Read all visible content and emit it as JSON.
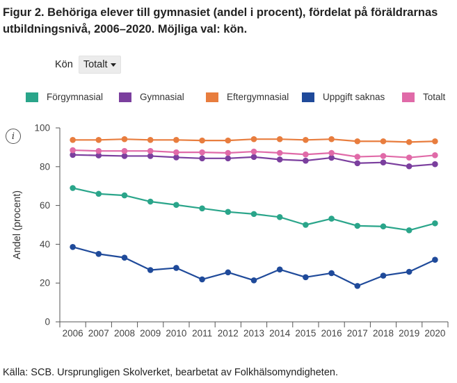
{
  "title": "Figur 2. Behöriga elever till gymnasiet (andel i procent), fördelat på föräldrarnas utbildningsnivå, 2006–2020. Möjliga val: kön.",
  "filter": {
    "label": "Kön",
    "selected": "Totalt"
  },
  "info_icon": "info-icon",
  "info_glyph": "i",
  "source": "Källa: SCB. Ursprungligen Skolverket, bearbetat av Folkhälsomyndigheten.",
  "chart_data": {
    "type": "line",
    "ylabel": "Andel (procent)",
    "xlabel": "",
    "ylim": [
      0,
      100
    ],
    "yticks": [
      0,
      20,
      40,
      60,
      80,
      100
    ],
    "grid": false,
    "legend_position": "top",
    "x": [
      "2006",
      "2007",
      "2008",
      "2009",
      "2010",
      "2011",
      "2012",
      "2013",
      "2014",
      "2015",
      "2016",
      "2017",
      "2018",
      "2019",
      "2020"
    ],
    "series": [
      {
        "name": "Förgymnasial",
        "color": "#2aa58a",
        "values": [
          69,
          66,
          65.2,
          62,
          60.3,
          58.5,
          56.7,
          55.6,
          54,
          50,
          53.2,
          49.5,
          49.2,
          47.2,
          50.8
        ]
      },
      {
        "name": "Gymnasial",
        "color": "#7b3f9e",
        "values": [
          86.1,
          85.8,
          85.5,
          85.5,
          84.8,
          84.3,
          84.3,
          85,
          83.7,
          83.1,
          84.6,
          81.8,
          82.2,
          80.2,
          81.3
        ]
      },
      {
        "name": "Eftergymnasial",
        "color": "#e87d3e",
        "values": [
          93.8,
          93.8,
          94.2,
          93.8,
          93.8,
          93.5,
          93.5,
          94.2,
          94.2,
          93.8,
          94.2,
          93.1,
          93.1,
          92.7,
          93.1
        ]
      },
      {
        "name": "Uppgift saknas",
        "color": "#1f4a9a",
        "values": [
          38.6,
          35,
          33.1,
          26.7,
          27.8,
          21.9,
          25.5,
          21.4,
          27,
          23,
          25.1,
          18.5,
          23.8,
          25.8,
          32
        ]
      },
      {
        "name": "Totalt",
        "color": "#e06aa8",
        "values": [
          88.5,
          88.1,
          88.1,
          88.1,
          87.4,
          87.4,
          87.1,
          87.8,
          87.1,
          86.3,
          87.1,
          85.1,
          85.5,
          84.7,
          85.9
        ]
      }
    ]
  }
}
